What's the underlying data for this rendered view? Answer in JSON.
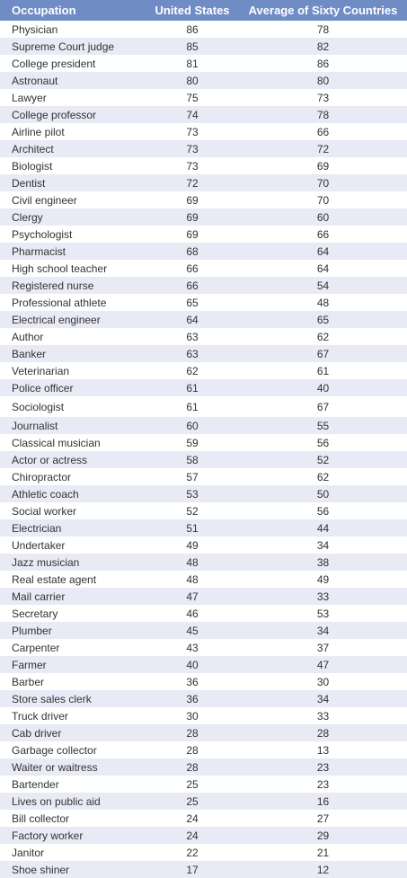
{
  "table": {
    "headers": [
      "Occupation",
      "United States",
      "Average of Sixty Countries"
    ],
    "rows": [
      [
        "Physician",
        "86",
        "78"
      ],
      [
        "Supreme Court judge",
        "85",
        "82"
      ],
      [
        "College president",
        "81",
        "86"
      ],
      [
        "Astronaut",
        "80",
        "80"
      ],
      [
        "Lawyer",
        "75",
        "73"
      ],
      [
        "College professor",
        "74",
        "78"
      ],
      [
        "Airline pilot",
        "73",
        "66"
      ],
      [
        "Architect",
        "73",
        "72"
      ],
      [
        "Biologist",
        "73",
        "69"
      ],
      [
        "Dentist",
        "72",
        "70"
      ],
      [
        "Civil engineer",
        "69",
        "70"
      ],
      [
        "Clergy",
        "69",
        "60"
      ],
      [
        "Psychologist",
        "69",
        "66"
      ],
      [
        "Pharmacist",
        "68",
        "64"
      ],
      [
        "High school teacher",
        "66",
        "64"
      ],
      [
        "Registered nurse",
        "66",
        "54"
      ],
      [
        "Professional athlete",
        "65",
        "48"
      ],
      [
        "Electrical engineer",
        "64",
        "65"
      ],
      [
        "Author",
        "63",
        "62"
      ],
      [
        "Banker",
        "63",
        "67"
      ],
      [
        "Veterinarian",
        "62",
        "61"
      ],
      [
        "Police officer",
        "61",
        "40"
      ],
      [
        "Sociologist",
        "61",
        "67"
      ],
      [
        "Journalist",
        "60",
        "55"
      ],
      [
        "Classical musician",
        "59",
        "56"
      ],
      [
        "Actor or actress",
        "58",
        "52"
      ],
      [
        "Chiropractor",
        "57",
        "62"
      ],
      [
        "Athletic coach",
        "53",
        "50"
      ],
      [
        "Social worker",
        "52",
        "56"
      ],
      [
        "Electrician",
        "51",
        "44"
      ],
      [
        "Undertaker",
        "49",
        "34"
      ],
      [
        "Jazz musician",
        "48",
        "38"
      ],
      [
        "Real estate agent",
        "48",
        "49"
      ],
      [
        "Mail carrier",
        "47",
        "33"
      ],
      [
        "Secretary",
        "46",
        "53"
      ],
      [
        "Plumber",
        "45",
        "34"
      ],
      [
        "Carpenter",
        "43",
        "37"
      ],
      [
        "Farmer",
        "40",
        "47"
      ],
      [
        "Barber",
        "36",
        "30"
      ],
      [
        "Store sales clerk",
        "36",
        "34"
      ],
      [
        "Truck driver",
        "30",
        "33"
      ],
      [
        "Cab driver",
        "28",
        "28"
      ],
      [
        "Garbage collector",
        "28",
        "13"
      ],
      [
        "Waiter or waitress",
        "28",
        "23"
      ],
      [
        "Bartender",
        "25",
        "23"
      ],
      [
        "Lives on public aid",
        "25",
        "16"
      ],
      [
        "Bill collector",
        "24",
        "27"
      ],
      [
        "Factory worker",
        "24",
        "29"
      ],
      [
        "Janitor",
        "22",
        "21"
      ],
      [
        "Shoe shiner",
        "17",
        "12"
      ]
    ]
  },
  "colors": {
    "header_bg": "#6f8cc4",
    "header_text": "#ffffff",
    "stripe": "#e8ebf6",
    "text": "#333333"
  }
}
